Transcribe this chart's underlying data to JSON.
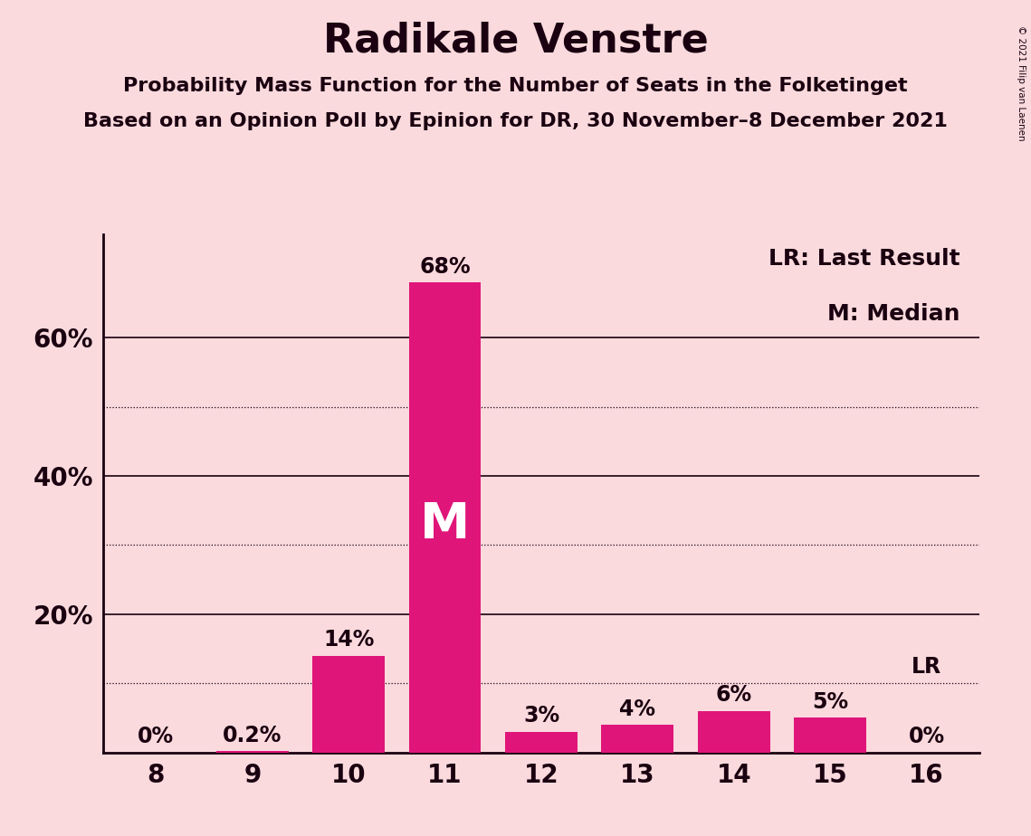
{
  "title": "Radikale Venstre",
  "subtitle1": "Probability Mass Function for the Number of Seats in the Folketinget",
  "subtitle2": "Based on an Opinion Poll by Epinion for DR, 30 November–8 December 2021",
  "copyright": "© 2021 Filip van Laenen",
  "categories": [
    8,
    9,
    10,
    11,
    12,
    13,
    14,
    15,
    16
  ],
  "values": [
    0.0,
    0.2,
    14.0,
    68.0,
    3.0,
    4.0,
    6.0,
    5.0,
    0.0
  ],
  "labels": [
    "0%",
    "0.2%",
    "14%",
    "68%",
    "3%",
    "4%",
    "6%",
    "5%",
    "0%"
  ],
  "bar_color": "#E0157A",
  "background_color": "#FADADD",
  "text_color": "#1a0010",
  "median_bar_index": 3,
  "lr_bar_index": 8,
  "legend_lr": "LR: Last Result",
  "legend_m": "M: Median",
  "ylim": [
    0,
    75
  ],
  "shown_yticks": [
    20,
    40,
    60
  ],
  "shown_ytick_labels": [
    "20%",
    "40%",
    "60%"
  ],
  "dotted_lines": [
    10,
    30,
    50
  ],
  "solid_lines": [
    20,
    40,
    60
  ],
  "title_fontsize": 32,
  "subtitle_fontsize": 16,
  "tick_fontsize": 20,
  "label_fontsize": 17,
  "legend_fontsize": 18,
  "m_fontsize": 40
}
